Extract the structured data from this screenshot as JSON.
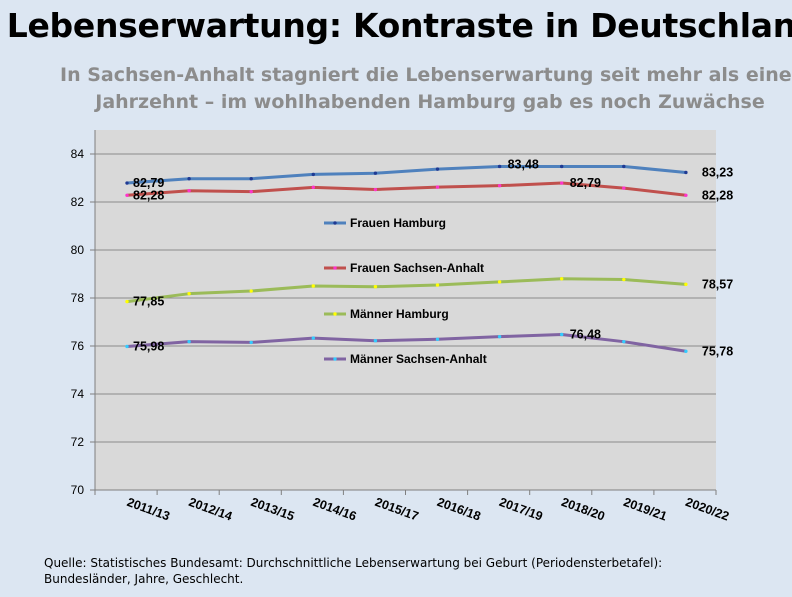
{
  "title": "Lebenserwartung: Kontraste in Deutschland",
  "subtitle_lines": [
    "In Sachsen-Anhalt stagniert die Lebenserwartung seit mehr als einem",
    "Jahrzehnt – im wohlhabenden Hamburg gab es noch Zuwächse"
  ],
  "footer_lines": [
    "Quelle: Statistisches Bundesamt: Durchschnittliche Lebenserwartung bei Geburt (Periodensterbetafel):",
    "Bundesländer, Jahre, Geschlecht."
  ],
  "chart_data": {
    "type": "line",
    "title": "",
    "xlabel": "",
    "ylabel": "",
    "categories": [
      "2011/13",
      "2012/14",
      "2013/15",
      "2014/16",
      "2015/17",
      "2016/18",
      "2017/19",
      "2018/20",
      "2019/21",
      "2020/22"
    ],
    "ylim": [
      70,
      85
    ],
    "yticks": [
      70,
      72,
      74,
      76,
      78,
      80,
      82,
      84
    ],
    "grid": true,
    "legend_position": "inside-center",
    "series": [
      {
        "name": "Frauen Hamburg",
        "color": "#4f81bd",
        "marker_color": "#1f3a93",
        "values": [
          82.79,
          82.97,
          82.97,
          83.15,
          83.2,
          83.37,
          83.48,
          83.48,
          83.48,
          83.23
        ],
        "labels": [
          {
            "index": 0,
            "text": "82,79"
          },
          {
            "index": 6,
            "text": "83,48"
          },
          {
            "index": 9,
            "text": "83,23"
          }
        ]
      },
      {
        "name": "Frauen Sachsen-Anhalt",
        "color": "#c0504d",
        "marker_color": "#ff33cc",
        "values": [
          82.28,
          82.47,
          82.43,
          82.61,
          82.52,
          82.62,
          82.68,
          82.79,
          82.58,
          82.28
        ],
        "labels": [
          {
            "index": 0,
            "text": "82,28"
          },
          {
            "index": 7,
            "text": "82,79"
          },
          {
            "index": 9,
            "text": "82,28"
          }
        ]
      },
      {
        "name": "Männer Hamburg",
        "color": "#9bbb59",
        "marker_color": "#ffff00",
        "values": [
          77.85,
          78.18,
          78.29,
          78.5,
          78.47,
          78.54,
          78.67,
          78.8,
          78.77,
          78.57
        ],
        "labels": [
          {
            "index": 0,
            "text": "77,85"
          },
          {
            "index": 9,
            "text": "78,57"
          }
        ]
      },
      {
        "name": "Männer Sachsen-Anhalt",
        "color": "#8064a2",
        "marker_color": "#33ccff",
        "values": [
          75.98,
          76.18,
          76.15,
          76.33,
          76.22,
          76.28,
          76.39,
          76.48,
          76.18,
          75.78
        ],
        "labels": [
          {
            "index": 0,
            "text": "75,98"
          },
          {
            "index": 7,
            "text": "76,48"
          },
          {
            "index": 9,
            "text": "75,78"
          }
        ]
      }
    ]
  }
}
